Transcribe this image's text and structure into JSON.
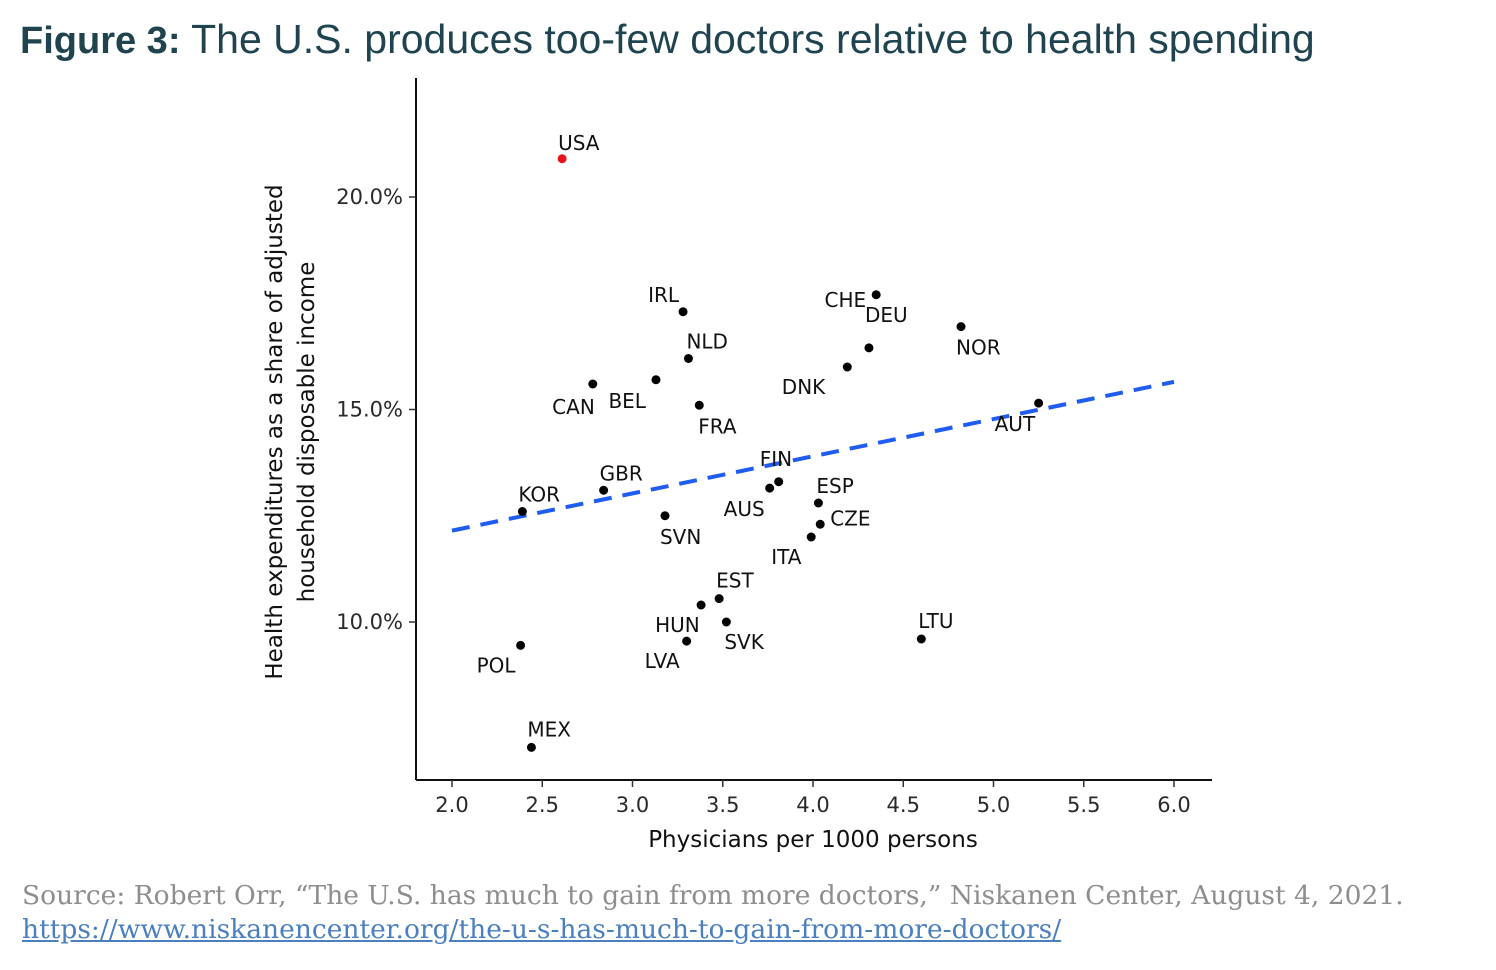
{
  "figure": {
    "label": "Figure 3",
    "separator": ":",
    "title": "The U.S. produces too-few doctors relative to health spending"
  },
  "source": {
    "text": "Source: Robert Orr, “The U.S. has much to gain from more doctors,” Niskanen Center, August 4, 2021.",
    "url": "https://www.niskanencenter.org/the-u-s-has-much-to-gain-from-more-doctors/"
  },
  "colors": {
    "title": "#1f4450",
    "highlight_point": "#e8141b",
    "point": "#000000",
    "trend_line": "#1f5cf0",
    "source_text": "#8e8e8e",
    "link": "#4a7fc0"
  },
  "chart_data": {
    "type": "scatter",
    "title": "",
    "xlabel": "Physicians per 1000 persons",
    "ylabel_lines": [
      "Health expenditures as a share of adjusted",
      "household disposable income"
    ],
    "xlim": [
      2.0,
      6.0
    ],
    "ylim": [
      6.7,
      22.5
    ],
    "x_ticks": [
      2.0,
      2.5,
      3.0,
      3.5,
      4.0,
      4.5,
      5.0,
      5.5,
      6.0
    ],
    "x_tick_labels": [
      "2.0",
      "2.5",
      "3.0",
      "3.5",
      "4.0",
      "4.5",
      "5.0",
      "5.5",
      "6.0"
    ],
    "y_ticks": [
      10.0,
      15.0,
      20.0
    ],
    "y_tick_labels": [
      "10.0%",
      "15.0%",
      "20.0%"
    ],
    "grid": false,
    "legend": "none",
    "points": [
      {
        "label": "USA",
        "x": 2.61,
        "y": 20.9,
        "highlight": true
      },
      {
        "label": "IRL",
        "x": 3.28,
        "y": 17.3
      },
      {
        "label": "CHE",
        "x": 4.35,
        "y": 17.7
      },
      {
        "label": "NOR",
        "x": 4.82,
        "y": 16.95
      },
      {
        "label": "DEU",
        "x": 4.31,
        "y": 16.45
      },
      {
        "label": "NLD",
        "x": 3.31,
        "y": 16.2
      },
      {
        "label": "DNK",
        "x": 4.19,
        "y": 16.0
      },
      {
        "label": "BEL",
        "x": 3.13,
        "y": 15.7
      },
      {
        "label": "CAN",
        "x": 2.78,
        "y": 15.6
      },
      {
        "label": "AUT",
        "x": 5.25,
        "y": 15.15
      },
      {
        "label": "FRA",
        "x": 3.37,
        "y": 15.1
      },
      {
        "label": "FIN",
        "x": 3.81,
        "y": 13.3
      },
      {
        "label": "AUS",
        "x": 3.76,
        "y": 13.15
      },
      {
        "label": "GBR",
        "x": 2.84,
        "y": 13.1
      },
      {
        "label": "ESP",
        "x": 4.03,
        "y": 12.8
      },
      {
        "label": "KOR",
        "x": 2.39,
        "y": 12.6
      },
      {
        "label": "SVN",
        "x": 3.18,
        "y": 12.5
      },
      {
        "label": "CZE",
        "x": 4.04,
        "y": 12.3
      },
      {
        "label": "ITA",
        "x": 3.99,
        "y": 12.0
      },
      {
        "label": "EST",
        "x": 3.48,
        "y": 10.55
      },
      {
        "label": "HUN",
        "x": 3.38,
        "y": 10.4
      },
      {
        "label": "SVK",
        "x": 3.52,
        "y": 10.0
      },
      {
        "label": "LVA",
        "x": 3.3,
        "y": 9.55
      },
      {
        "label": "LTU",
        "x": 4.6,
        "y": 9.6
      },
      {
        "label": "POL",
        "x": 2.38,
        "y": 9.45
      },
      {
        "label": "MEX",
        "x": 2.44,
        "y": 7.05
      }
    ],
    "trend_line": {
      "style": "dashed",
      "x": [
        2.0,
        6.0
      ],
      "y": [
        12.15,
        15.65
      ]
    }
  }
}
